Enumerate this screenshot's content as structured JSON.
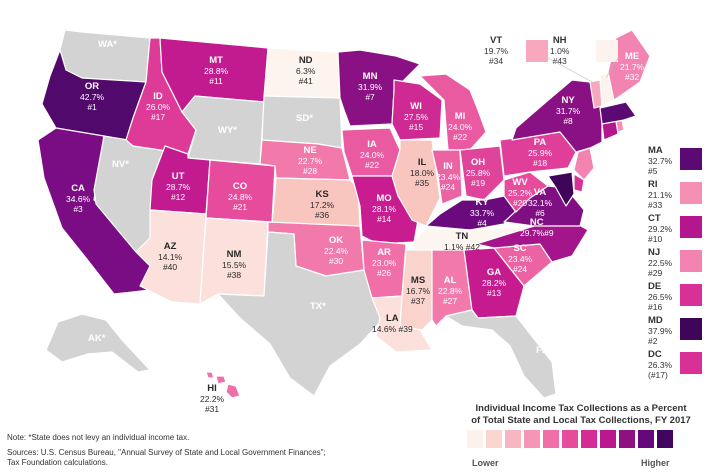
{
  "legend": {
    "title_line1": "Individual Income Tax Collections as a Percent",
    "title_line2": "of Total State and Local Tax Collections, FY 2017",
    "lower_label": "Lower",
    "higher_label": "Higher",
    "scale_colors": [
      "#fdf1ec",
      "#fbd6d0",
      "#f8b6c3",
      "#f596b7",
      "#f06fa8",
      "#e64b9c",
      "#d62b95",
      "#b9188e",
      "#8e1182",
      "#65087a",
      "#42055f"
    ]
  },
  "note": "Note: *State does not levy an individual income tax.",
  "sources_line1": "Sources: U.S. Census Bureau, \"Annual Survey of State and Local Government Finances\";",
  "sources_line2": "Tax Foundation calculations.",
  "states": {
    "WA": {
      "abbr": "WA*",
      "pct": "",
      "rank": "",
      "color": "#d3d3d3"
    },
    "OR": {
      "abbr": "OR",
      "pct": "42.7%",
      "rank": "#1",
      "color": "#51096b"
    },
    "CA": {
      "abbr": "CA",
      "pct": "34.6%",
      "rank": "#3",
      "color": "#7a0d84"
    },
    "ID": {
      "abbr": "ID",
      "pct": "26.0%",
      "rank": "#17",
      "color": "#de3b98"
    },
    "NV": {
      "abbr": "NV*",
      "pct": "",
      "rank": "",
      "color": "#d3d3d3"
    },
    "MT": {
      "abbr": "MT",
      "pct": "28.8%",
      "rank": "#11",
      "color": "#c21a8f"
    },
    "WY": {
      "abbr": "WY*",
      "pct": "",
      "rank": "",
      "color": "#d3d3d3"
    },
    "UT": {
      "abbr": "UT",
      "pct": "28.7%",
      "rank": "#12",
      "color": "#c21a8f"
    },
    "AZ": {
      "abbr": "AZ",
      "pct": "14.1%",
      "rank": "#40",
      "color": "#fbe0db"
    },
    "CO": {
      "abbr": "CO",
      "pct": "24.8%",
      "rank": "#21",
      "color": "#e64b9c"
    },
    "NM": {
      "abbr": "NM",
      "pct": "15.5%",
      "rank": "#38",
      "color": "#fbe0db"
    },
    "ND": {
      "abbr": "ND",
      "pct": "6.3%",
      "rank": "#41",
      "color": "#fdf4ee"
    },
    "SD": {
      "abbr": "SD*",
      "pct": "",
      "rank": "",
      "color": "#d3d3d3"
    },
    "NE": {
      "abbr": "NE",
      "pct": "22.7%",
      "rank": "#28",
      "color": "#f27aab"
    },
    "KS": {
      "abbr": "KS",
      "pct": "17.2%",
      "rank": "#36",
      "color": "#f9c6bf"
    },
    "OK": {
      "abbr": "OK",
      "pct": "22.4%",
      "rank": "#30",
      "color": "#f27aab"
    },
    "TX": {
      "abbr": "TX*",
      "pct": "",
      "rank": "",
      "color": "#d3d3d3"
    },
    "MN": {
      "abbr": "MN",
      "pct": "31.9%",
      "rank": "#7",
      "color": "#8a1183"
    },
    "IA": {
      "abbr": "IA",
      "pct": "24.0%",
      "rank": "#22",
      "color": "#ea5aa1"
    },
    "MO": {
      "abbr": "MO",
      "pct": "28.1%",
      "rank": "#14",
      "color": "#c81c90"
    },
    "AR": {
      "abbr": "AR",
      "pct": "23.0%",
      "rank": "#26",
      "color": "#f06fa8"
    },
    "LA": {
      "abbr": "LA",
      "pct": "14.6%",
      "rank": "#39",
      "color": "#fbe0db"
    },
    "WI": {
      "abbr": "WI",
      "pct": "27.5%",
      "rank": "#15",
      "color": "#cf2a93"
    },
    "IL": {
      "abbr": "IL",
      "pct": "18.0%",
      "rank": "#35",
      "color": "#f9c6bf"
    },
    "MI": {
      "abbr": "MI",
      "pct": "24.0%",
      "rank": "#22",
      "color": "#ea5aa1"
    },
    "IN": {
      "abbr": "IN",
      "pct": "23.4%",
      "rank": "#24",
      "color": "#ec63a4"
    },
    "OH": {
      "abbr": "OH",
      "pct": "25.8%",
      "rank": "#19",
      "color": "#e0449a"
    },
    "KY": {
      "abbr": "KY",
      "pct": "33.7%",
      "rank": "#4",
      "color": "#6a0a7c"
    },
    "TN": {
      "abbr": "TN",
      "pct": "1.1%",
      "rank": "#42",
      "color": "#fdf5f0"
    },
    "MS": {
      "abbr": "MS",
      "pct": "16.7%",
      "rank": "#37",
      "color": "#fad4cc"
    },
    "AL": {
      "abbr": "AL",
      "pct": "22.8%",
      "rank": "#27",
      "color": "#f27aab"
    },
    "GA": {
      "abbr": "GA",
      "pct": "28.2%",
      "rank": "#13",
      "color": "#c51b8f"
    },
    "FL": {
      "abbr": "FL*",
      "pct": "",
      "rank": "",
      "color": "#d3d3d3"
    },
    "SC": {
      "abbr": "SC",
      "pct": "23.4%",
      "rank": "#24",
      "color": "#ec63a4"
    },
    "NC": {
      "abbr": "NC",
      "pct": "29.7%",
      "rank": "#9",
      "color": "#a4158c"
    },
    "VA": {
      "abbr": "VA",
      "pct": "32.1%",
      "rank": "#6",
      "color": "#800f83"
    },
    "WV": {
      "abbr": "WV",
      "pct": "25.2%",
      "rank": "#20",
      "color": "#e64b9c"
    },
    "PA": {
      "abbr": "PA",
      "pct": "25.9%",
      "rank": "#18",
      "color": "#df3e99"
    },
    "NY": {
      "abbr": "NY",
      "pct": "31.7%",
      "rank": "#8",
      "color": "#8a1183"
    },
    "ME": {
      "abbr": "ME",
      "pct": "21.7%",
      "rank": "#32",
      "color": "#f383b0"
    },
    "VT": {
      "abbr": "VT",
      "pct": "19.7%",
      "rank": "#34",
      "color": "#f8a8bd"
    },
    "NH": {
      "abbr": "NH",
      "pct": "1.0%",
      "rank": "#43",
      "color": "#fdf3ee"
    },
    "AK": {
      "abbr": "AK*",
      "pct": "",
      "rank": "",
      "color": "#d3d3d3"
    },
    "HI": {
      "abbr": "HI",
      "pct": "22.2%",
      "rank": "#31",
      "color": "#f06fa8"
    },
    "MA": {
      "abbr": "MA",
      "pct": "32.7%",
      "rank": "#5",
      "color": "#5c0a73"
    },
    "RI": {
      "abbr": "RI",
      "pct": "21.1%",
      "rank": "#33",
      "color": "#f58fb3"
    },
    "CT": {
      "abbr": "CT",
      "pct": "29.2%",
      "rank": "#10",
      "color": "#b4168d"
    },
    "NJ": {
      "abbr": "NJ",
      "pct": "22.5%",
      "rank": "#29",
      "color": "#f383b0"
    },
    "DE": {
      "abbr": "DE",
      "pct": "26.5%",
      "rank": "#16",
      "color": "#d83096"
    },
    "MD": {
      "abbr": "MD",
      "pct": "37.9%",
      "rank": "#2",
      "color": "#3e0558"
    },
    "DC": {
      "abbr": "DC",
      "pct": "26.3%",
      "rank": "(#17)",
      "color": "#d83096"
    }
  }
}
